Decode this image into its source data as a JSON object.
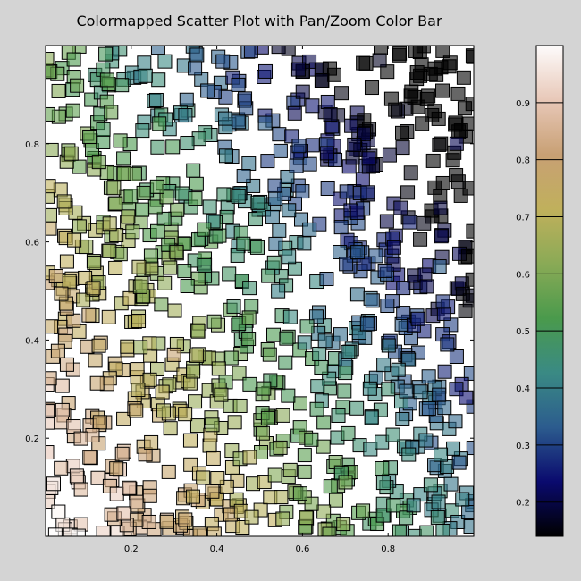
{
  "chart_data": {
    "type": "scatter",
    "title": "Colormapped Scatter Plot with Pan/Zoom Color Bar",
    "xlim": [
      0.0,
      1.0
    ],
    "ylim": [
      0.0,
      1.0
    ],
    "xticks": [
      0.2,
      0.4,
      0.6,
      0.8
    ],
    "yticks": [
      0.2,
      0.4,
      0.6,
      0.8
    ],
    "xtick_labels": [
      "0.2",
      "0.4",
      "0.6",
      "0.8"
    ],
    "ytick_labels": [
      "0.2",
      "0.4",
      "0.6",
      "0.8"
    ],
    "marker": "square",
    "point_count": 1000,
    "colorbar": {
      "colormap": "gist_earth",
      "range": [
        0.14,
        1.0
      ],
      "ticks": [
        0.2,
        0.3,
        0.4,
        0.5,
        0.6,
        0.7,
        0.8,
        0.9
      ],
      "tick_labels": [
        "0.2",
        "0.3",
        "0.4",
        "0.5",
        "0.6",
        "0.7",
        "0.8",
        "0.9"
      ],
      "stops": [
        "#000000",
        "#0a0a6e",
        "#2c5c8e",
        "#3a8a84",
        "#4a9a4c",
        "#8aaa56",
        "#c0b05c",
        "#c8a074",
        "#e8c8b8",
        "#fdfbfb"
      ]
    },
    "color_rule": "value ≈ 1 − 0.6·x − 0.45·y (gist_earth colormap)",
    "samples": [
      {
        "x": 0.03,
        "y": 0.05,
        "c": 0.99
      },
      {
        "x": 0.05,
        "y": 0.35,
        "c": 0.84
      },
      {
        "x": 0.06,
        "y": 0.78,
        "c": 0.63
      },
      {
        "x": 0.3,
        "y": 0.37,
        "c": 0.8
      },
      {
        "x": 0.45,
        "y": 0.92,
        "c": 0.31
      },
      {
        "x": 0.55,
        "y": 0.08,
        "c": 0.68
      },
      {
        "x": 0.8,
        "y": 0.3,
        "c": 0.46
      },
      {
        "x": 0.78,
        "y": 0.97,
        "c": 0.17
      },
      {
        "x": 0.92,
        "y": 0.55,
        "c": 0.34
      },
      {
        "x": 0.96,
        "y": 0.8,
        "c": 0.21
      }
    ]
  }
}
